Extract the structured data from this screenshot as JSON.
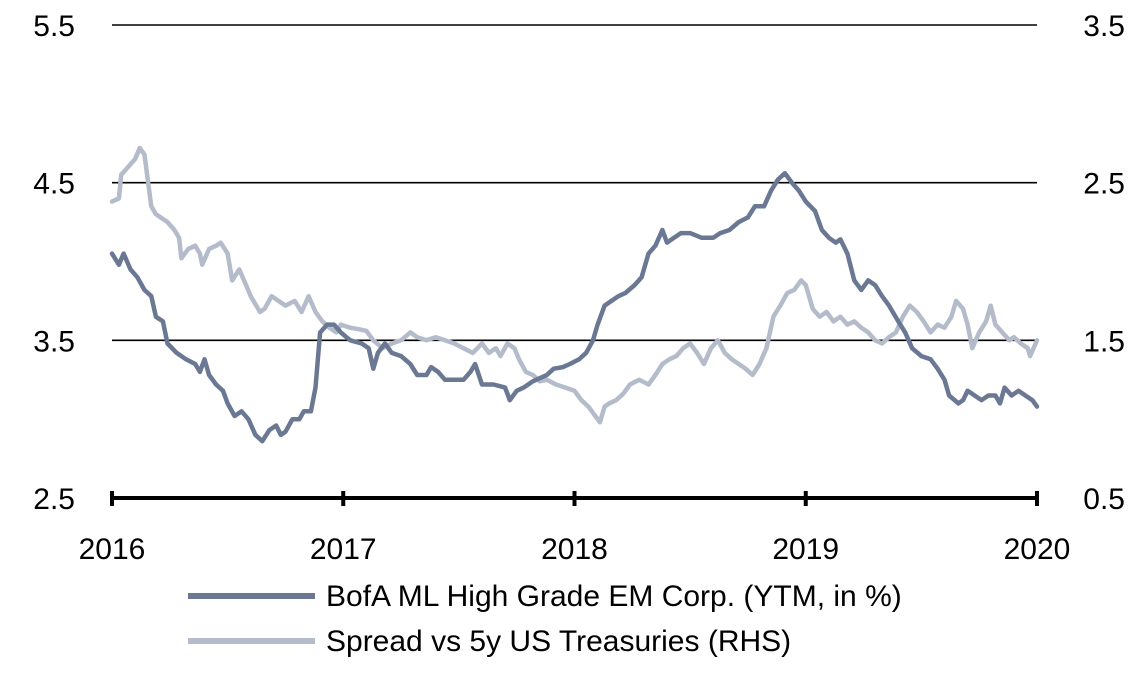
{
  "chart_data": {
    "type": "line",
    "title": "",
    "xlabel": "",
    "ylabel": "",
    "x_range": [
      2016,
      2020
    ],
    "x_ticks": [
      2016,
      2017,
      2018,
      2019,
      2020
    ],
    "x_tick_labels": [
      "2016",
      "2017",
      "2018",
      "2019",
      "2020"
    ],
    "y_left": {
      "range": [
        2.5,
        5.5
      ],
      "ticks": [
        5.5,
        4.5,
        3.5,
        2.5
      ],
      "tick_labels": [
        "5.5",
        "4.5",
        "3.5",
        "2.5"
      ]
    },
    "y_right": {
      "range": [
        0.5,
        3.5
      ],
      "ticks": [
        3.5,
        2.5,
        1.5,
        0.5
      ],
      "tick_labels": [
        "3.5",
        "2.5",
        "1.5",
        "0.5"
      ]
    },
    "grid": "horizontal",
    "legend_position": "bottom",
    "series": [
      {
        "name": "BofA ML High Grade EM Corp. (YTM, in %)",
        "axis": "left",
        "color": "#6a7894",
        "points": [
          [
            2016.0,
            4.05
          ],
          [
            2016.03,
            3.98
          ],
          [
            2016.05,
            4.05
          ],
          [
            2016.08,
            3.95
          ],
          [
            2016.11,
            3.9
          ],
          [
            2016.14,
            3.82
          ],
          [
            2016.17,
            3.78
          ],
          [
            2016.19,
            3.65
          ],
          [
            2016.22,
            3.62
          ],
          [
            2016.24,
            3.48
          ],
          [
            2016.28,
            3.42
          ],
          [
            2016.32,
            3.38
          ],
          [
            2016.36,
            3.35
          ],
          [
            2016.38,
            3.3
          ],
          [
            2016.4,
            3.38
          ],
          [
            2016.42,
            3.28
          ],
          [
            2016.45,
            3.22
          ],
          [
            2016.48,
            3.18
          ],
          [
            2016.5,
            3.1
          ],
          [
            2016.53,
            3.02
          ],
          [
            2016.56,
            3.05
          ],
          [
            2016.59,
            3.0
          ],
          [
            2016.62,
            2.9
          ],
          [
            2016.65,
            2.86
          ],
          [
            2016.68,
            2.93
          ],
          [
            2016.71,
            2.96
          ],
          [
            2016.73,
            2.9
          ],
          [
            2016.75,
            2.92
          ],
          [
            2016.78,
            3.0
          ],
          [
            2016.81,
            3.0
          ],
          [
            2016.83,
            3.05
          ],
          [
            2016.86,
            3.05
          ],
          [
            2016.88,
            3.2
          ],
          [
            2016.9,
            3.55
          ],
          [
            2016.93,
            3.6
          ],
          [
            2016.96,
            3.6
          ],
          [
            2016.99,
            3.55
          ],
          [
            2017.03,
            3.5
          ],
          [
            2017.08,
            3.48
          ],
          [
            2017.11,
            3.45
          ],
          [
            2017.13,
            3.32
          ],
          [
            2017.15,
            3.42
          ],
          [
            2017.18,
            3.48
          ],
          [
            2017.21,
            3.42
          ],
          [
            2017.25,
            3.4
          ],
          [
            2017.29,
            3.35
          ],
          [
            2017.32,
            3.28
          ],
          [
            2017.36,
            3.28
          ],
          [
            2017.38,
            3.33
          ],
          [
            2017.41,
            3.3
          ],
          [
            2017.44,
            3.25
          ],
          [
            2017.48,
            3.25
          ],
          [
            2017.52,
            3.25
          ],
          [
            2017.55,
            3.3
          ],
          [
            2017.57,
            3.35
          ],
          [
            2017.6,
            3.22
          ],
          [
            2017.65,
            3.22
          ],
          [
            2017.7,
            3.2
          ],
          [
            2017.72,
            3.12
          ],
          [
            2017.75,
            3.18
          ],
          [
            2017.78,
            3.2
          ],
          [
            2017.82,
            3.24
          ],
          [
            2017.85,
            3.26
          ],
          [
            2017.88,
            3.28
          ],
          [
            2017.91,
            3.32
          ],
          [
            2017.95,
            3.33
          ],
          [
            2017.98,
            3.35
          ],
          [
            2018.02,
            3.38
          ],
          [
            2018.05,
            3.42
          ],
          [
            2018.08,
            3.5
          ],
          [
            2018.1,
            3.6
          ],
          [
            2018.13,
            3.72
          ],
          [
            2018.16,
            3.75
          ],
          [
            2018.19,
            3.78
          ],
          [
            2018.22,
            3.8
          ],
          [
            2018.26,
            3.85
          ],
          [
            2018.29,
            3.9
          ],
          [
            2018.32,
            4.05
          ],
          [
            2018.35,
            4.1
          ],
          [
            2018.38,
            4.2
          ],
          [
            2018.4,
            4.12
          ],
          [
            2018.43,
            4.15
          ],
          [
            2018.46,
            4.18
          ],
          [
            2018.5,
            4.18
          ],
          [
            2018.55,
            4.15
          ],
          [
            2018.6,
            4.15
          ],
          [
            2018.63,
            4.18
          ],
          [
            2018.67,
            4.2
          ],
          [
            2018.71,
            4.25
          ],
          [
            2018.75,
            4.28
          ],
          [
            2018.78,
            4.35
          ],
          [
            2018.82,
            4.35
          ],
          [
            2018.85,
            4.45
          ],
          [
            2018.88,
            4.52
          ],
          [
            2018.91,
            4.56
          ],
          [
            2018.94,
            4.5
          ],
          [
            2018.97,
            4.45
          ],
          [
            2019.0,
            4.38
          ],
          [
            2019.04,
            4.32
          ],
          [
            2019.07,
            4.2
          ],
          [
            2019.1,
            4.15
          ],
          [
            2019.13,
            4.12
          ],
          [
            2019.15,
            4.14
          ],
          [
            2019.18,
            4.05
          ],
          [
            2019.21,
            3.88
          ],
          [
            2019.24,
            3.82
          ],
          [
            2019.27,
            3.88
          ],
          [
            2019.3,
            3.85
          ],
          [
            2019.33,
            3.78
          ],
          [
            2019.36,
            3.72
          ],
          [
            2019.4,
            3.62
          ],
          [
            2019.43,
            3.55
          ],
          [
            2019.46,
            3.45
          ],
          [
            2019.5,
            3.4
          ],
          [
            2019.54,
            3.38
          ],
          [
            2019.57,
            3.32
          ],
          [
            2019.6,
            3.25
          ],
          [
            2019.62,
            3.15
          ],
          [
            2019.66,
            3.1
          ],
          [
            2019.68,
            3.12
          ],
          [
            2019.7,
            3.18
          ],
          [
            2019.73,
            3.15
          ],
          [
            2019.76,
            3.12
          ],
          [
            2019.79,
            3.15
          ],
          [
            2019.82,
            3.15
          ],
          [
            2019.84,
            3.1
          ],
          [
            2019.86,
            3.2
          ],
          [
            2019.89,
            3.15
          ],
          [
            2019.92,
            3.18
          ],
          [
            2019.95,
            3.15
          ],
          [
            2019.98,
            3.12
          ],
          [
            2020.0,
            3.08
          ]
        ]
      },
      {
        "name": "Spread vs 5y US Treasuries (RHS)",
        "axis": "right",
        "color": "#b4bbca",
        "points": [
          [
            2016.0,
            2.38
          ],
          [
            2016.03,
            2.4
          ],
          [
            2016.04,
            2.55
          ],
          [
            2016.07,
            2.6
          ],
          [
            2016.1,
            2.65
          ],
          [
            2016.12,
            2.72
          ],
          [
            2016.14,
            2.68
          ],
          [
            2016.17,
            2.35
          ],
          [
            2016.19,
            2.3
          ],
          [
            2016.21,
            2.28
          ],
          [
            2016.24,
            2.25
          ],
          [
            2016.27,
            2.2
          ],
          [
            2016.29,
            2.15
          ],
          [
            2016.3,
            2.02
          ],
          [
            2016.33,
            2.08
          ],
          [
            2016.36,
            2.1
          ],
          [
            2016.38,
            2.05
          ],
          [
            2016.39,
            1.98
          ],
          [
            2016.42,
            2.08
          ],
          [
            2016.45,
            2.1
          ],
          [
            2016.47,
            2.12
          ],
          [
            2016.5,
            2.05
          ],
          [
            2016.52,
            1.88
          ],
          [
            2016.55,
            1.95
          ],
          [
            2016.58,
            1.85
          ],
          [
            2016.6,
            1.78
          ],
          [
            2016.64,
            1.68
          ],
          [
            2016.66,
            1.7
          ],
          [
            2016.69,
            1.78
          ],
          [
            2016.72,
            1.75
          ],
          [
            2016.75,
            1.72
          ],
          [
            2016.79,
            1.75
          ],
          [
            2016.82,
            1.68
          ],
          [
            2016.85,
            1.78
          ],
          [
            2016.88,
            1.68
          ],
          [
            2016.91,
            1.62
          ],
          [
            2016.94,
            1.58
          ],
          [
            2016.97,
            1.55
          ],
          [
            2016.99,
            1.6
          ],
          [
            2017.03,
            1.58
          ],
          [
            2017.07,
            1.57
          ],
          [
            2017.1,
            1.56
          ],
          [
            2017.13,
            1.5
          ],
          [
            2017.17,
            1.45
          ],
          [
            2017.21,
            1.48
          ],
          [
            2017.25,
            1.5
          ],
          [
            2017.29,
            1.55
          ],
          [
            2017.32,
            1.52
          ],
          [
            2017.36,
            1.5
          ],
          [
            2017.4,
            1.52
          ],
          [
            2017.44,
            1.5
          ],
          [
            2017.48,
            1.48
          ],
          [
            2017.52,
            1.45
          ],
          [
            2017.56,
            1.42
          ],
          [
            2017.6,
            1.48
          ],
          [
            2017.63,
            1.42
          ],
          [
            2017.66,
            1.45
          ],
          [
            2017.68,
            1.4
          ],
          [
            2017.71,
            1.48
          ],
          [
            2017.74,
            1.45
          ],
          [
            2017.76,
            1.38
          ],
          [
            2017.79,
            1.3
          ],
          [
            2017.82,
            1.28
          ],
          [
            2017.85,
            1.24
          ],
          [
            2017.88,
            1.25
          ],
          [
            2017.92,
            1.22
          ],
          [
            2017.96,
            1.2
          ],
          [
            2018.0,
            1.18
          ],
          [
            2018.03,
            1.12
          ],
          [
            2018.06,
            1.08
          ],
          [
            2018.09,
            1.02
          ],
          [
            2018.11,
            0.98
          ],
          [
            2018.13,
            1.08
          ],
          [
            2018.15,
            1.1
          ],
          [
            2018.18,
            1.12
          ],
          [
            2018.21,
            1.16
          ],
          [
            2018.24,
            1.22
          ],
          [
            2018.28,
            1.25
          ],
          [
            2018.32,
            1.22
          ],
          [
            2018.35,
            1.28
          ],
          [
            2018.38,
            1.35
          ],
          [
            2018.41,
            1.38
          ],
          [
            2018.44,
            1.4
          ],
          [
            2018.47,
            1.45
          ],
          [
            2018.5,
            1.48
          ],
          [
            2018.53,
            1.42
          ],
          [
            2018.56,
            1.35
          ],
          [
            2018.59,
            1.45
          ],
          [
            2018.62,
            1.5
          ],
          [
            2018.65,
            1.42
          ],
          [
            2018.68,
            1.38
          ],
          [
            2018.71,
            1.35
          ],
          [
            2018.74,
            1.32
          ],
          [
            2018.77,
            1.28
          ],
          [
            2018.8,
            1.35
          ],
          [
            2018.83,
            1.45
          ],
          [
            2018.86,
            1.65
          ],
          [
            2018.89,
            1.72
          ],
          [
            2018.92,
            1.8
          ],
          [
            2018.95,
            1.82
          ],
          [
            2018.98,
            1.88
          ],
          [
            2019.0,
            1.85
          ],
          [
            2019.03,
            1.7
          ],
          [
            2019.06,
            1.65
          ],
          [
            2019.09,
            1.68
          ],
          [
            2019.12,
            1.62
          ],
          [
            2019.15,
            1.65
          ],
          [
            2019.18,
            1.6
          ],
          [
            2019.21,
            1.62
          ],
          [
            2019.24,
            1.58
          ],
          [
            2019.27,
            1.55
          ],
          [
            2019.3,
            1.5
          ],
          [
            2019.33,
            1.48
          ],
          [
            2019.36,
            1.52
          ],
          [
            2019.39,
            1.55
          ],
          [
            2019.42,
            1.65
          ],
          [
            2019.45,
            1.72
          ],
          [
            2019.48,
            1.68
          ],
          [
            2019.51,
            1.62
          ],
          [
            2019.54,
            1.55
          ],
          [
            2019.57,
            1.6
          ],
          [
            2019.6,
            1.58
          ],
          [
            2019.63,
            1.65
          ],
          [
            2019.65,
            1.75
          ],
          [
            2019.68,
            1.7
          ],
          [
            2019.7,
            1.6
          ],
          [
            2019.72,
            1.45
          ],
          [
            2019.75,
            1.55
          ],
          [
            2019.78,
            1.62
          ],
          [
            2019.8,
            1.72
          ],
          [
            2019.82,
            1.6
          ],
          [
            2019.85,
            1.55
          ],
          [
            2019.88,
            1.5
          ],
          [
            2019.9,
            1.52
          ],
          [
            2019.93,
            1.48
          ],
          [
            2019.96,
            1.45
          ],
          [
            2019.97,
            1.4
          ],
          [
            2020.0,
            1.5
          ]
        ]
      }
    ]
  }
}
